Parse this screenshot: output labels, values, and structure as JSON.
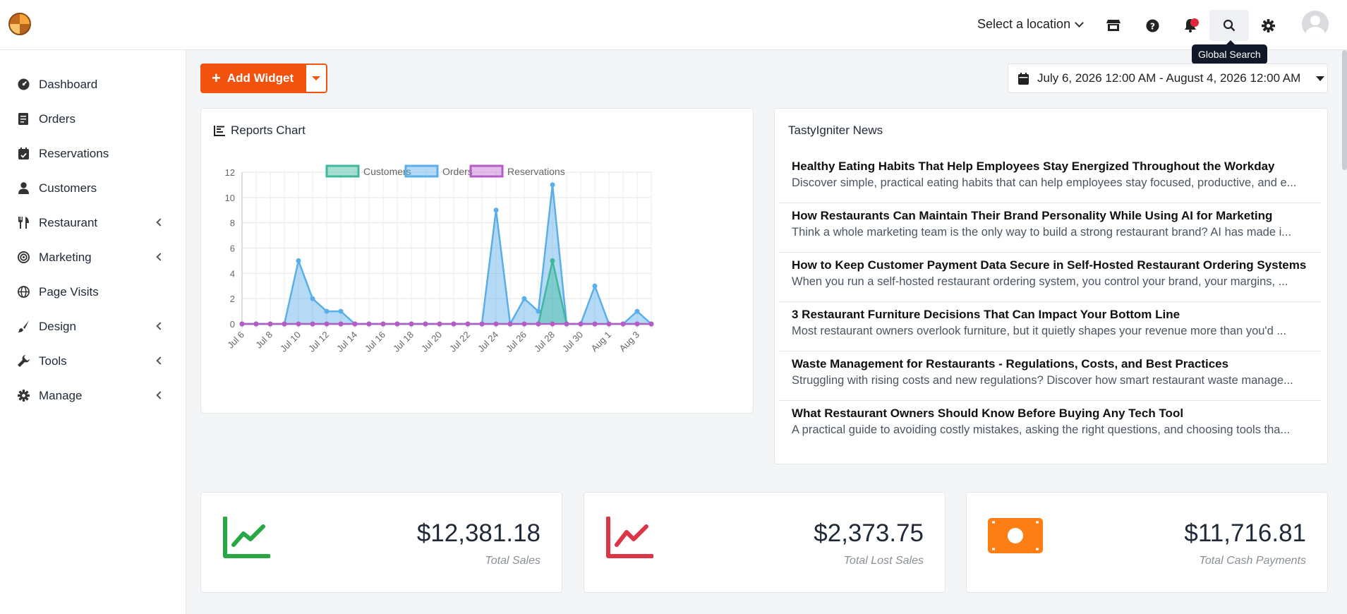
{
  "header": {
    "location_label": "Select a location",
    "tooltip": "Global Search"
  },
  "sidebar": {
    "items": [
      {
        "label": "Dashboard",
        "icon": "dashboard-icon",
        "expandable": false
      },
      {
        "label": "Orders",
        "icon": "orders-icon",
        "expandable": false
      },
      {
        "label": "Reservations",
        "icon": "calendar-icon",
        "expandable": false
      },
      {
        "label": "Customers",
        "icon": "user-icon",
        "expandable": false
      },
      {
        "label": "Restaurant",
        "icon": "utensils-icon",
        "expandable": true
      },
      {
        "label": "Marketing",
        "icon": "target-icon",
        "expandable": true
      },
      {
        "label": "Page Visits",
        "icon": "globe-icon",
        "expandable": false
      },
      {
        "label": "Design",
        "icon": "brush-icon",
        "expandable": true
      },
      {
        "label": "Tools",
        "icon": "wrench-icon",
        "expandable": true
      },
      {
        "label": "Manage",
        "icon": "gear-icon",
        "expandable": true
      }
    ]
  },
  "toolbar": {
    "add_widget_label": "Add Widget",
    "date_range": "July 6, 2026 12:00 AM - August 4, 2026 12:00 AM"
  },
  "reports": {
    "title": "Reports Chart"
  },
  "chart_data": {
    "type": "area",
    "title": "Reports Chart",
    "xlabel": "",
    "ylabel": "",
    "ylim": [
      0,
      12
    ],
    "yticks": [
      "0",
      "2",
      "4",
      "6",
      "8",
      "10",
      "12"
    ],
    "x": [
      "Jul 6",
      "Jul 7",
      "Jul 8",
      "Jul 9",
      "Jul 10",
      "Jul 11",
      "Jul 12",
      "Jul 13",
      "Jul 14",
      "Jul 15",
      "Jul 16",
      "Jul 17",
      "Jul 18",
      "Jul 19",
      "Jul 20",
      "Jul 21",
      "Jul 22",
      "Jul 23",
      "Jul 24",
      "Jul 25",
      "Jul 26",
      "Jul 27",
      "Jul 28",
      "Jul 29",
      "Jul 30",
      "Jul 31",
      "Aug 1",
      "Aug 2",
      "Aug 3",
      "Aug 4"
    ],
    "xtick_labels": [
      "Jul 6",
      "",
      "Jul 8",
      "",
      "Jul 10",
      "",
      "Jul 12",
      "",
      "Jul 14",
      "",
      "Jul 16",
      "",
      "Jul 18",
      "",
      "Jul 20",
      "",
      "Jul 22",
      "",
      "Jul 24",
      "",
      "Jul 26",
      "",
      "Jul 28",
      "",
      "Jul 30",
      "",
      "Aug 1",
      "",
      "Aug 3",
      ""
    ],
    "legend_position": "top",
    "grid": true,
    "series": [
      {
        "name": "Customers",
        "color": "#3fb89d",
        "fill": "rgba(63,184,157,0.45)",
        "values": [
          0,
          0,
          0,
          0,
          0,
          0,
          0,
          0,
          0,
          0,
          0,
          0,
          0,
          0,
          0,
          0,
          0,
          0,
          0,
          0,
          0,
          0,
          5,
          0,
          0,
          0,
          0,
          0,
          0,
          0
        ]
      },
      {
        "name": "Orders",
        "color": "#5aaeea",
        "fill": "rgba(90,174,234,0.45)",
        "values": [
          0,
          0,
          0,
          0,
          5,
          2,
          1,
          1,
          0,
          0,
          0,
          0,
          0,
          0,
          0,
          0,
          0,
          0,
          9,
          0,
          2,
          1,
          11,
          0,
          0,
          3,
          0,
          0,
          1,
          0
        ]
      },
      {
        "name": "Reservations",
        "color": "#b65cc7",
        "fill": "rgba(182,92,199,0.4)",
        "values": [
          0,
          0,
          0,
          0,
          0,
          0,
          0,
          0,
          0,
          0,
          0,
          0,
          0,
          0,
          0,
          0,
          0,
          0,
          0,
          0,
          0,
          0,
          0,
          0,
          0,
          0,
          0,
          0,
          0,
          0
        ]
      }
    ]
  },
  "news": {
    "title": "TastyIgniter News",
    "items": [
      {
        "title": "Healthy Eating Habits That Help Employees Stay Energized Throughout the Workday",
        "desc": "Discover simple, practical eating habits that can help employees stay focused, productive, and e..."
      },
      {
        "title": "How Restaurants Can Maintain Their Brand Personality While Using AI for Marketing",
        "desc": "Think a whole marketing team is the only way to build a strong restaurant brand? AI has made i..."
      },
      {
        "title": "How to Keep Customer Payment Data Secure in Self-Hosted Restaurant Ordering Systems",
        "desc": "When you run a self-hosted restaurant ordering system, you control your brand, your margins, ..."
      },
      {
        "title": "3 Restaurant Furniture Decisions That Can Impact Your Bottom Line",
        "desc": "Most restaurant owners overlook furniture, but it quietly shapes your revenue more than you'd ..."
      },
      {
        "title": "Waste Management for Restaurants - Regulations, Costs, and Best Practices",
        "desc": "Struggling with rising costs and new regulations? Discover how smart restaurant waste manage..."
      },
      {
        "title": "What Restaurant Owners Should Know Before Buying Any Tech Tool",
        "desc": "A practical guide to avoiding costly mistakes, asking the right questions, and choosing tools tha..."
      }
    ]
  },
  "stats": [
    {
      "value": "$12,381.18",
      "label": "Total Sales",
      "color": "#28a745",
      "icon": "trend-up-icon"
    },
    {
      "value": "$2,373.75",
      "label": "Total Lost Sales",
      "color": "#dc3545",
      "icon": "trend-down-icon"
    },
    {
      "value": "$11,716.81",
      "label": "Total Cash Payments",
      "color": "#fd7e14",
      "icon": "money-icon"
    }
  ],
  "colors": {
    "accent": "#f1520e",
    "notification": "#e0253d"
  }
}
